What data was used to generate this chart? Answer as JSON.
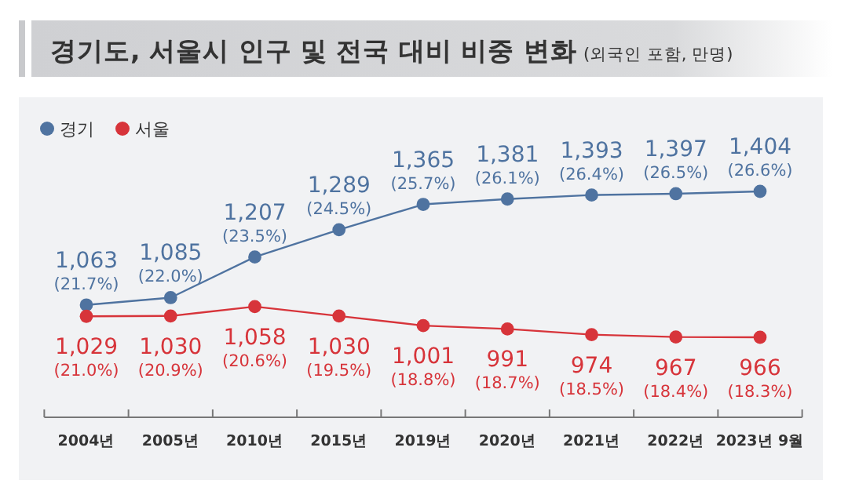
{
  "chart_data": {
    "type": "line",
    "title": "경기도, 서울시 인구 및 전국 대비 비중 변화",
    "subtitle": "(외국인 포함, 만명)",
    "categories": [
      "2004년",
      "2005년",
      "2010년",
      "2015년",
      "2019년",
      "2020년",
      "2021년",
      "2022년",
      "2023년 9월"
    ],
    "legend": "top left",
    "marker": "circle",
    "series": [
      {
        "name": "경기",
        "color": "#4f73a0",
        "values": [
          1063,
          1085,
          1207,
          1289,
          1365,
          1381,
          1393,
          1397,
          1404
        ],
        "value_labels": [
          "1,063 (21.7%)",
          "1,085 (22.0%)",
          "1,207 (23.5%)",
          "1,289 (24.5%)",
          "1,365 (25.7%)",
          "1,381 (26.1%)",
          "1,393 (26.4%)",
          "1,397 (26.5%)",
          "1,404 (26.6%)"
        ]
      },
      {
        "name": "서울",
        "color": "#d7343a",
        "values": [
          1029,
          1030,
          1058,
          1030,
          1001,
          991,
          974,
          967,
          966
        ],
        "value_labels": [
          "1,029 (21.0%)",
          "1,030 (20.9%)",
          "1,058 (20.6%)",
          "1,030 (19.5%)",
          "1,001 (18.8%)",
          "991 (18.7%)",
          "974 (18.5%)",
          "967 (18.4%)",
          "966 (18.3%)"
        ]
      }
    ]
  }
}
